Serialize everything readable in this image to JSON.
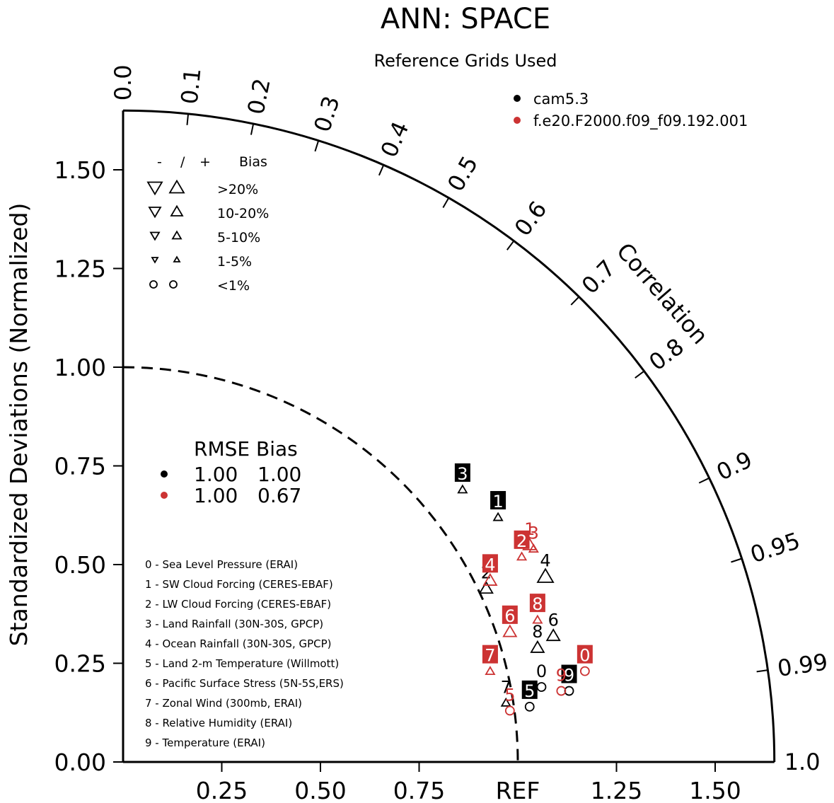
{
  "chart_data": {
    "type": "scatter",
    "title": "ANN: SPACE",
    "subtitle": "Reference Grids Used",
    "ylabel": "Standardized Deviations (Normalized)",
    "arc_label": "Correlation",
    "ref_label": "REF",
    "axis_range": [
      0,
      1.65
    ],
    "y_ticks": [
      {
        "value": 0.0,
        "label": "0.00"
      },
      {
        "value": 0.25,
        "label": "0.25"
      },
      {
        "value": 0.5,
        "label": "0.50"
      },
      {
        "value": 0.75,
        "label": "0.75"
      },
      {
        "value": 1.0,
        "label": "1.00"
      },
      {
        "value": 1.25,
        "label": "1.25"
      },
      {
        "value": 1.5,
        "label": "1.50"
      }
    ],
    "x_ticks": [
      {
        "value": 0.25,
        "label": "0.25"
      },
      {
        "value": 0.5,
        "label": "0.50"
      },
      {
        "value": 0.75,
        "label": "0.75"
      },
      {
        "value": 1.25,
        "label": "1.25"
      },
      {
        "value": 1.5,
        "label": "1.50"
      }
    ],
    "correlation_ticks": [
      {
        "value": 0.0,
        "label": "0.0"
      },
      {
        "value": 0.1,
        "label": "0.1"
      },
      {
        "value": 0.2,
        "label": "0.2"
      },
      {
        "value": 0.3,
        "label": "0.3"
      },
      {
        "value": 0.4,
        "label": "0.4"
      },
      {
        "value": 0.5,
        "label": "0.5"
      },
      {
        "value": 0.6,
        "label": "0.6"
      },
      {
        "value": 0.7,
        "label": "0.7"
      },
      {
        "value": 0.8,
        "label": "0.8"
      },
      {
        "value": 0.9,
        "label": "0.9"
      },
      {
        "value": 0.95,
        "label": "0.95"
      },
      {
        "value": 0.99,
        "label": "0.99"
      },
      {
        "value": 1.0,
        "label": "1.0"
      }
    ],
    "reference_arc_std": 1.0,
    "series": [
      {
        "name": "cam5.3",
        "color": "#000000",
        "rmse": "1.00",
        "bias": "1.00",
        "points": [
          {
            "id": "0",
            "x": 1.06,
            "y": 0.19,
            "marker": "circle",
            "label_style": "plain"
          },
          {
            "id": "1",
            "x": 0.95,
            "y": 0.62,
            "marker": "tri-up-small",
            "label_style": "box"
          },
          {
            "id": "2",
            "x": 0.92,
            "y": 0.44,
            "marker": "tri-up-medium",
            "label_style": "plain"
          },
          {
            "id": "3",
            "x": 0.86,
            "y": 0.69,
            "marker": "tri-up-small",
            "label_style": "box"
          },
          {
            "id": "4",
            "x": 1.07,
            "y": 0.47,
            "marker": "tri-up-large",
            "label_style": "plain"
          },
          {
            "id": "5",
            "x": 1.03,
            "y": 0.14,
            "marker": "circle",
            "label_style": "box"
          },
          {
            "id": "6",
            "x": 1.09,
            "y": 0.32,
            "marker": "tri-up-medium",
            "label_style": "plain"
          },
          {
            "id": "7",
            "x": 0.97,
            "y": 0.15,
            "marker": "tri-up-small",
            "label_style": "plain"
          },
          {
            "id": "8",
            "x": 1.05,
            "y": 0.29,
            "marker": "tri-up-medium",
            "label_style": "plain"
          },
          {
            "id": "9",
            "x": 1.13,
            "y": 0.18,
            "marker": "circle",
            "label_style": "box"
          }
        ]
      },
      {
        "name": "f.e20.F2000.f09_f09.192.001",
        "color": "#cc3333",
        "rmse": "1.00",
        "bias": "0.67",
        "points": [
          {
            "id": "0",
            "x": 1.17,
            "y": 0.23,
            "marker": "circle",
            "label_style": "box"
          },
          {
            "id": "1",
            "x": 1.03,
            "y": 0.55,
            "marker": "tri-up-medium",
            "label_style": "plain"
          },
          {
            "id": "2",
            "x": 1.01,
            "y": 0.52,
            "marker": "tri-up-small",
            "label_style": "box"
          },
          {
            "id": "3",
            "x": 1.04,
            "y": 0.54,
            "marker": "tri-up-small",
            "label_style": "plain"
          },
          {
            "id": "4",
            "x": 0.93,
            "y": 0.46,
            "marker": "tri-up-medium",
            "label_style": "box"
          },
          {
            "id": "5",
            "x": 0.98,
            "y": 0.13,
            "marker": "circle",
            "label_style": "plain"
          },
          {
            "id": "6",
            "x": 0.98,
            "y": 0.33,
            "marker": "tri-up-medium",
            "label_style": "box"
          },
          {
            "id": "7",
            "x": 0.93,
            "y": 0.23,
            "marker": "tri-up-small",
            "label_style": "box"
          },
          {
            "id": "8",
            "x": 1.05,
            "y": 0.36,
            "marker": "tri-up-small",
            "label_style": "box"
          },
          {
            "id": "9",
            "x": 1.11,
            "y": 0.18,
            "marker": "circle",
            "label_style": "plain"
          }
        ]
      }
    ],
    "bias_legend": {
      "header": [
        "-",
        "/",
        "+",
        "Bias"
      ],
      "rows": [
        {
          "label": ">20%",
          "size": "xl"
        },
        {
          "label": "10-20%",
          "size": "lg"
        },
        {
          "label": "5-10%",
          "size": "md"
        },
        {
          "label": "1-5%",
          "size": "sm"
        },
        {
          "label": "<1%",
          "size": "circle"
        }
      ]
    },
    "rmse_header": "RMSE Bias",
    "variables": [
      "0 - Sea Level Pressure (ERAI)",
      "1 - SW Cloud Forcing (CERES-EBAF)",
      "2 - LW Cloud Forcing (CERES-EBAF)",
      "3 - Land Rainfall (30N-30S, GPCP)",
      "4 - Ocean Rainfall (30N-30S, GPCP)",
      "5 - Land 2-m Temperature (Willmott)",
      "6 - Pacific Surface Stress (5N-5S,ERS)",
      "7 - Zonal Wind (300mb, ERAI)",
      "8 - Relative Humidity (ERAI)",
      "9 - Temperature (ERAI)"
    ]
  }
}
